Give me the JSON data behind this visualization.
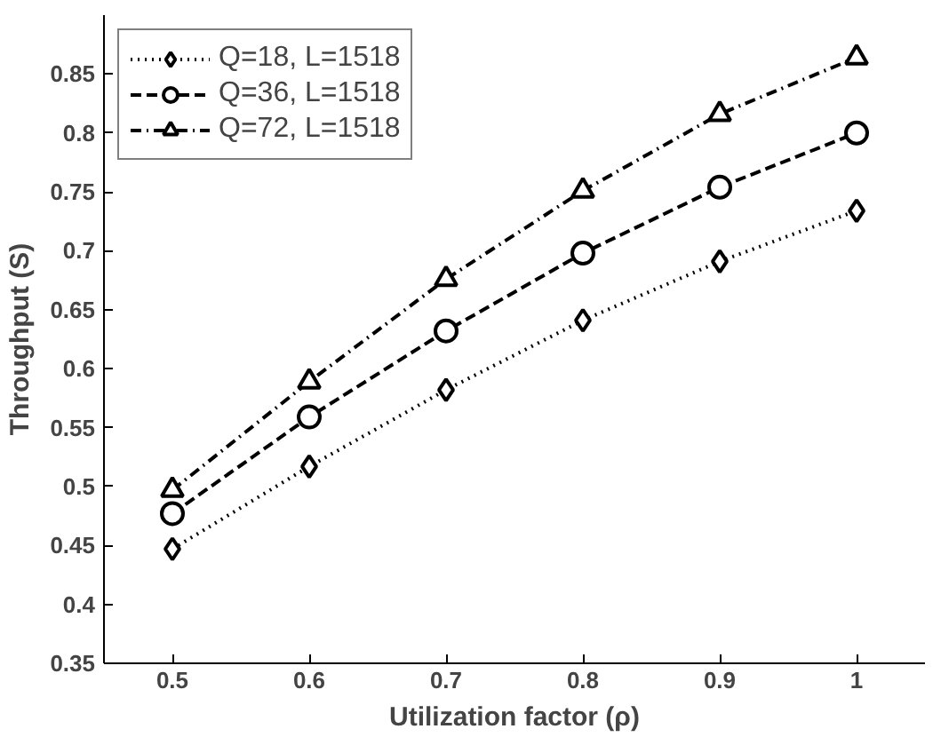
{
  "chart_data": {
    "type": "line",
    "xlabel": "Utilization factor (ρ)",
    "ylabel": "Throughput (S)",
    "x": [
      0.5,
      0.6,
      0.7,
      0.8,
      0.9,
      1
    ],
    "series": [
      {
        "name": "Q=18, L=1518",
        "color": "#000000",
        "marker": "diamond",
        "line_style": "dotted",
        "values": [
          0.447,
          0.517,
          0.582,
          0.641,
          0.691,
          0.734
        ]
      },
      {
        "name": "Q=36, L=1518",
        "color": "#000000",
        "marker": "circle",
        "line_style": "dashed",
        "values": [
          0.477,
          0.559,
          0.632,
          0.698,
          0.754,
          0.8
        ]
      },
      {
        "name": "Q=72, L=1518",
        "color": "#000000",
        "marker": "triangle",
        "line_style": "dashdot",
        "values": [
          0.497,
          0.589,
          0.676,
          0.751,
          0.816,
          0.864
        ]
      }
    ],
    "xlim": [
      0.45,
      1.05
    ],
    "ylim": [
      0.35,
      0.9
    ],
    "xticks": [
      0.5,
      0.6,
      0.7,
      0.8,
      0.9,
      1
    ],
    "yticks": [
      0.35,
      0.4,
      0.45,
      0.5,
      0.55,
      0.6,
      0.65,
      0.7,
      0.75,
      0.8,
      0.85
    ],
    "grid": false,
    "legend": "top left"
  }
}
